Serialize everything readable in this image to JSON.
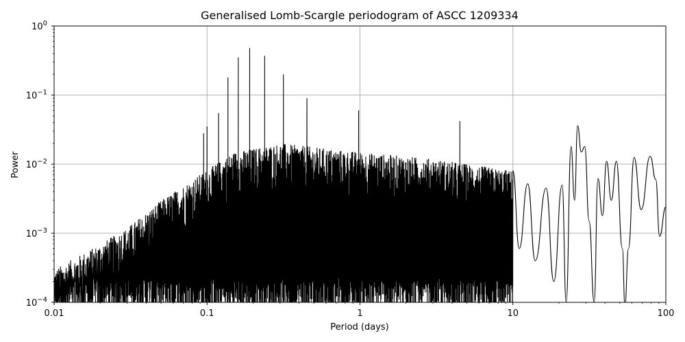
{
  "chart_data": {
    "type": "line",
    "title": "Generalised Lomb-Scargle periodogram of ASCC 1209334",
    "xlabel": "Period (days)",
    "ylabel": "Power",
    "xscale": "log",
    "yscale": "log",
    "xlim": [
      0.01,
      100
    ],
    "ylim": [
      0.0001,
      1
    ],
    "grid": true,
    "line_color": "#000000",
    "x_ticks": [
      {
        "value": 0.01,
        "label": "0.01"
      },
      {
        "value": 0.1,
        "label": "0.1"
      },
      {
        "value": 1,
        "label": "1"
      },
      {
        "value": 10,
        "label": "10"
      },
      {
        "value": 100,
        "label": "100"
      }
    ],
    "y_ticks": [
      {
        "value": 0.0001,
        "base": "10",
        "exp": "−4"
      },
      {
        "value": 0.001,
        "base": "10",
        "exp": "−3"
      },
      {
        "value": 0.01,
        "base": "10",
        "exp": "−2"
      },
      {
        "value": 0.1,
        "base": "10",
        "exp": "−1"
      },
      {
        "value": 1,
        "base": "10",
        "exp": "0"
      }
    ],
    "peaks": [
      {
        "x": 0.095,
        "y": 0.028
      },
      {
        "x": 0.1,
        "y": 0.035
      },
      {
        "x": 0.119,
        "y": 0.055
      },
      {
        "x": 0.137,
        "y": 0.18
      },
      {
        "x": 0.16,
        "y": 0.35
      },
      {
        "x": 0.19,
        "y": 0.48
      },
      {
        "x": 0.238,
        "y": 0.37
      },
      {
        "x": 0.316,
        "y": 0.2
      },
      {
        "x": 0.45,
        "y": 0.09
      },
      {
        "x": 0.98,
        "y": 0.06
      },
      {
        "x": 4.5,
        "y": 0.042
      },
      {
        "x": 26.5,
        "y": 0.036
      }
    ],
    "envelope": [
      {
        "x": 0.01,
        "y": 0.0003
      },
      {
        "x": 0.02,
        "y": 0.0007
      },
      {
        "x": 0.03,
        "y": 0.0012
      },
      {
        "x": 0.05,
        "y": 0.003
      },
      {
        "x": 0.08,
        "y": 0.006
      },
      {
        "x": 0.15,
        "y": 0.015
      },
      {
        "x": 0.3,
        "y": 0.02
      },
      {
        "x": 1,
        "y": 0.015
      },
      {
        "x": 3,
        "y": 0.012
      },
      {
        "x": 10,
        "y": 0.008
      }
    ],
    "smooth_tail": [
      {
        "x": 10,
        "y": 0.008
      },
      {
        "x": 11,
        "y": 0.0006
      },
      {
        "x": 12.5,
        "y": 0.0052
      },
      {
        "x": 14,
        "y": 0.0004
      },
      {
        "x": 16.5,
        "y": 0.0045
      },
      {
        "x": 18.5,
        "y": 0.0002
      },
      {
        "x": 21,
        "y": 0.005
      },
      {
        "x": 22.3,
        "y": 0.0001
      },
      {
        "x": 24,
        "y": 0.018
      },
      {
        "x": 25.3,
        "y": 0.003
      },
      {
        "x": 26.5,
        "y": 0.036
      },
      {
        "x": 28,
        "y": 0.015
      },
      {
        "x": 29.5,
        "y": 0.018
      },
      {
        "x": 31.5,
        "y": 0.0015
      },
      {
        "x": 34,
        "y": 0.0001
      },
      {
        "x": 36,
        "y": 0.0062
      },
      {
        "x": 38.5,
        "y": 0.0018
      },
      {
        "x": 41,
        "y": 0.011
      },
      {
        "x": 44,
        "y": 0.003
      },
      {
        "x": 47.5,
        "y": 0.011
      },
      {
        "x": 52,
        "y": 0.0006
      },
      {
        "x": 54,
        "y": 9e-05
      },
      {
        "x": 57,
        "y": 0.0006
      },
      {
        "x": 62,
        "y": 0.0125
      },
      {
        "x": 69,
        "y": 0.0022
      },
      {
        "x": 79,
        "y": 0.013
      },
      {
        "x": 86,
        "y": 0.006
      },
      {
        "x": 91,
        "y": 0.0009
      },
      {
        "x": 100,
        "y": 0.0024
      }
    ]
  }
}
